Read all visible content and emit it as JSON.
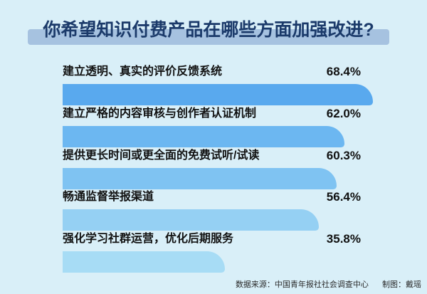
{
  "title": "你希望知识付费产品在哪些方面加强改进?",
  "footer": {
    "source": "数据来源：中国青年报社社会调查中心",
    "credit": "制图：戴瑶"
  },
  "colors": {
    "background": "#d9eff8",
    "title_band": "#a6c2e0",
    "title_text": "#1b3a6a",
    "label_text": "#111111",
    "footer_text": "#2a2a2a"
  },
  "chart_data": {
    "type": "bar",
    "orientation": "horizontal",
    "title": "你希望知识付费产品在哪些方面加强改进?",
    "categories": [
      "建立透明、真实的评价反馈系统",
      "建立严格的内容审核与创作者认证机制",
      "提供更长时间或更全面的免费试听/试读",
      "畅通监督举报渠道",
      "强化学习社群运营，优化后期服务"
    ],
    "values": [
      68.4,
      62.0,
      60.3,
      56.4,
      35.8
    ],
    "value_labels": [
      "68.4%",
      "62.0%",
      "60.3%",
      "56.4%",
      "35.8%"
    ],
    "bar_colors": [
      "#59a9ee",
      "#6cb7f1",
      "#7fc3f2",
      "#95d0f3",
      "#a7dcf5"
    ],
    "xlim": [
      0,
      70
    ],
    "grid": false,
    "legend": "none"
  }
}
